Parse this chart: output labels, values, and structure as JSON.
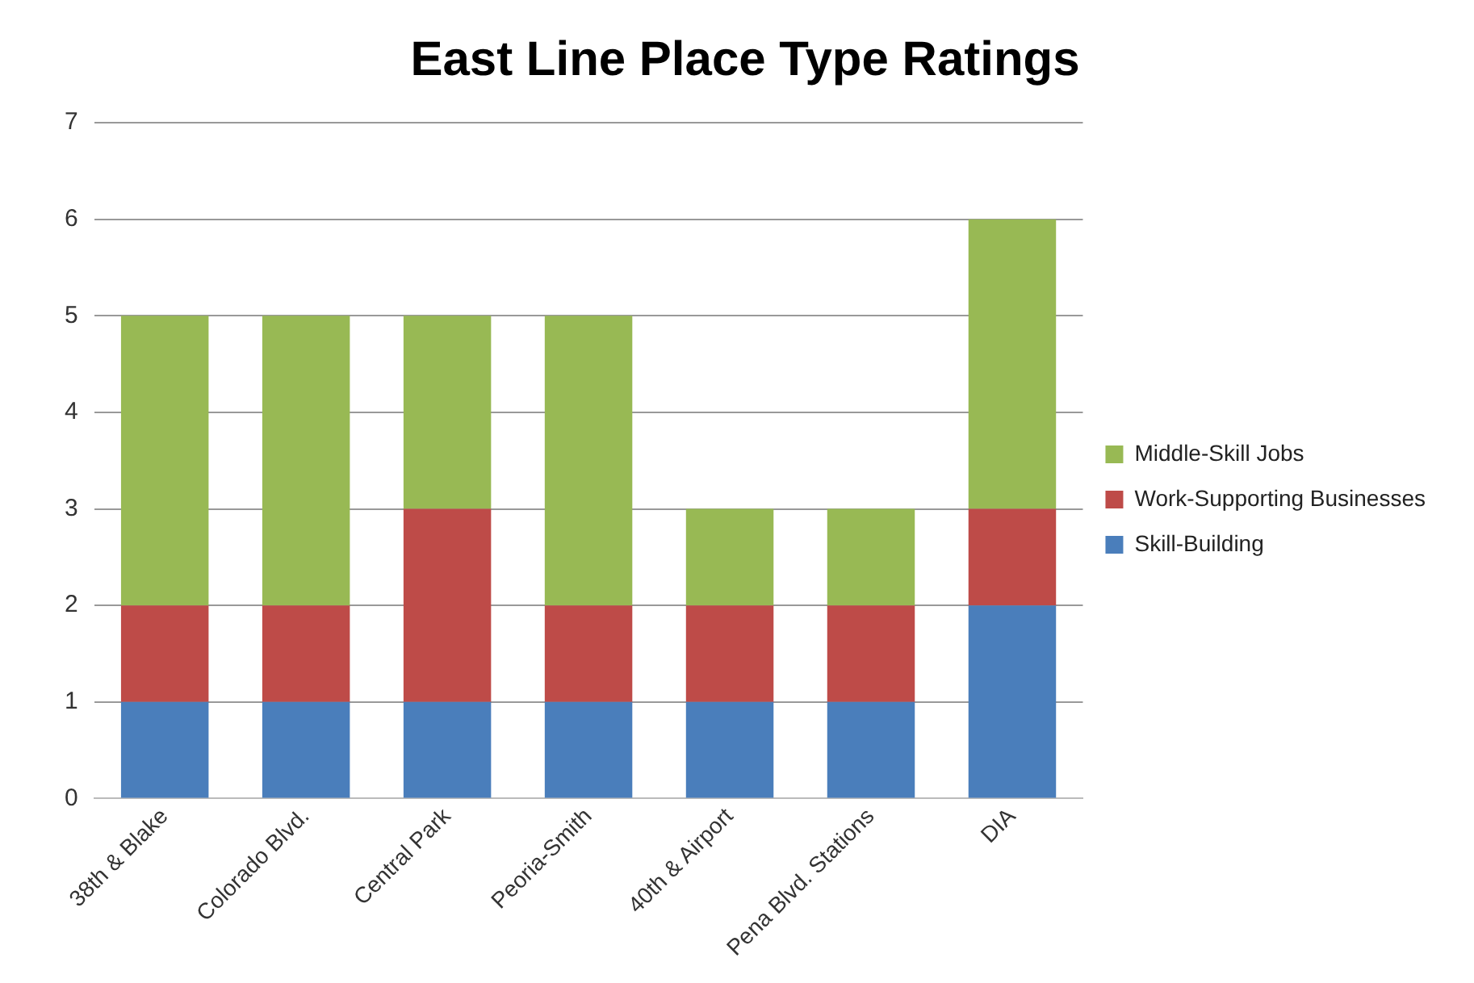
{
  "chart_data": {
    "type": "bar",
    "title": "East Line Place Type Ratings",
    "stacked": true,
    "categories": [
      "38th & Blake",
      "Colorado Blvd.",
      "Central Park",
      "Peoria-Smith",
      "40th & Airport",
      "Pena Blvd. Stations",
      "DIA"
    ],
    "series": [
      {
        "name": "Skill-Building",
        "color": "#4a7ebb",
        "values": [
          1,
          1,
          1,
          1,
          1,
          1,
          2
        ]
      },
      {
        "name": "Work-Supporting Businesses",
        "color": "#be4b48",
        "values": [
          1,
          1,
          2,
          1,
          1,
          1,
          1
        ]
      },
      {
        "name": "Middle-Skill Jobs",
        "color": "#98b954",
        "values": [
          3,
          3,
          2,
          3,
          1,
          1,
          3
        ]
      }
    ],
    "ylim": [
      0,
      7
    ],
    "yticks": [
      0,
      1,
      2,
      3,
      4,
      5,
      6,
      7
    ],
    "grid": "y",
    "legend": "right"
  }
}
